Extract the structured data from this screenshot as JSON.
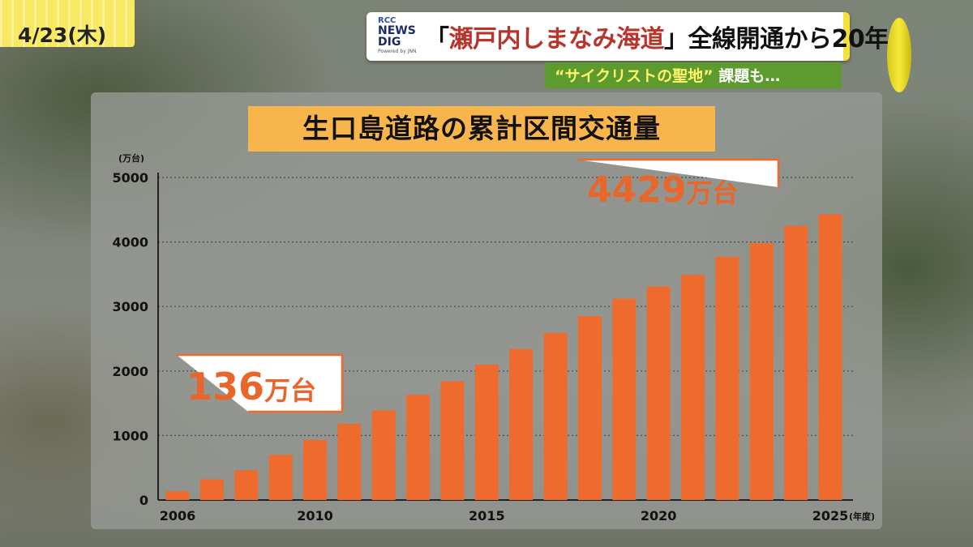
{
  "date": "4/23(木)",
  "logo": {
    "line1": "RCC",
    "line2": "NEWS",
    "line3": "DIG",
    "line4": "Powered by JNN"
  },
  "banner": {
    "headline_open": "「",
    "headline_accent": "瀬戸内しまなみ海道",
    "headline_close": "」",
    "headline_rest": "全線開通から20年",
    "subhead_accent": "“サイクリストの聖地”",
    "subhead_rest": " 課題も…"
  },
  "colors": {
    "bar": "#ee6b2d",
    "title_bg": "#f7b54c",
    "accent_red": "#b8352b",
    "sub_banner": "#5d9b2e"
  },
  "chart_data": {
    "type": "bar",
    "title": "生口島道路の累計区間交通量",
    "ylabel": "(万台)",
    "xlabel": "(年度)",
    "ylim": [
      0,
      5000
    ],
    "yticks": [
      0,
      1000,
      2000,
      3000,
      4000,
      5000
    ],
    "grid": true,
    "categories": [
      2006,
      2007,
      2008,
      2009,
      2010,
      2011,
      2012,
      2013,
      2014,
      2015,
      2016,
      2017,
      2018,
      2019,
      2020,
      2021,
      2022,
      2023,
      2024,
      2025
    ],
    "xtick_labels": [
      "2006",
      "2010",
      "2015",
      "2020",
      "2025"
    ],
    "values": [
      136,
      320,
      460,
      700,
      930,
      1180,
      1390,
      1630,
      1840,
      2100,
      2340,
      2590,
      2850,
      3120,
      3310,
      3490,
      3770,
      3980,
      4250,
      4429
    ],
    "annotations": [
      {
        "year": 2006,
        "value_text": "136",
        "unit_text": "万台"
      },
      {
        "year": 2025,
        "value_text": "4429",
        "unit_text": "万台"
      }
    ]
  }
}
